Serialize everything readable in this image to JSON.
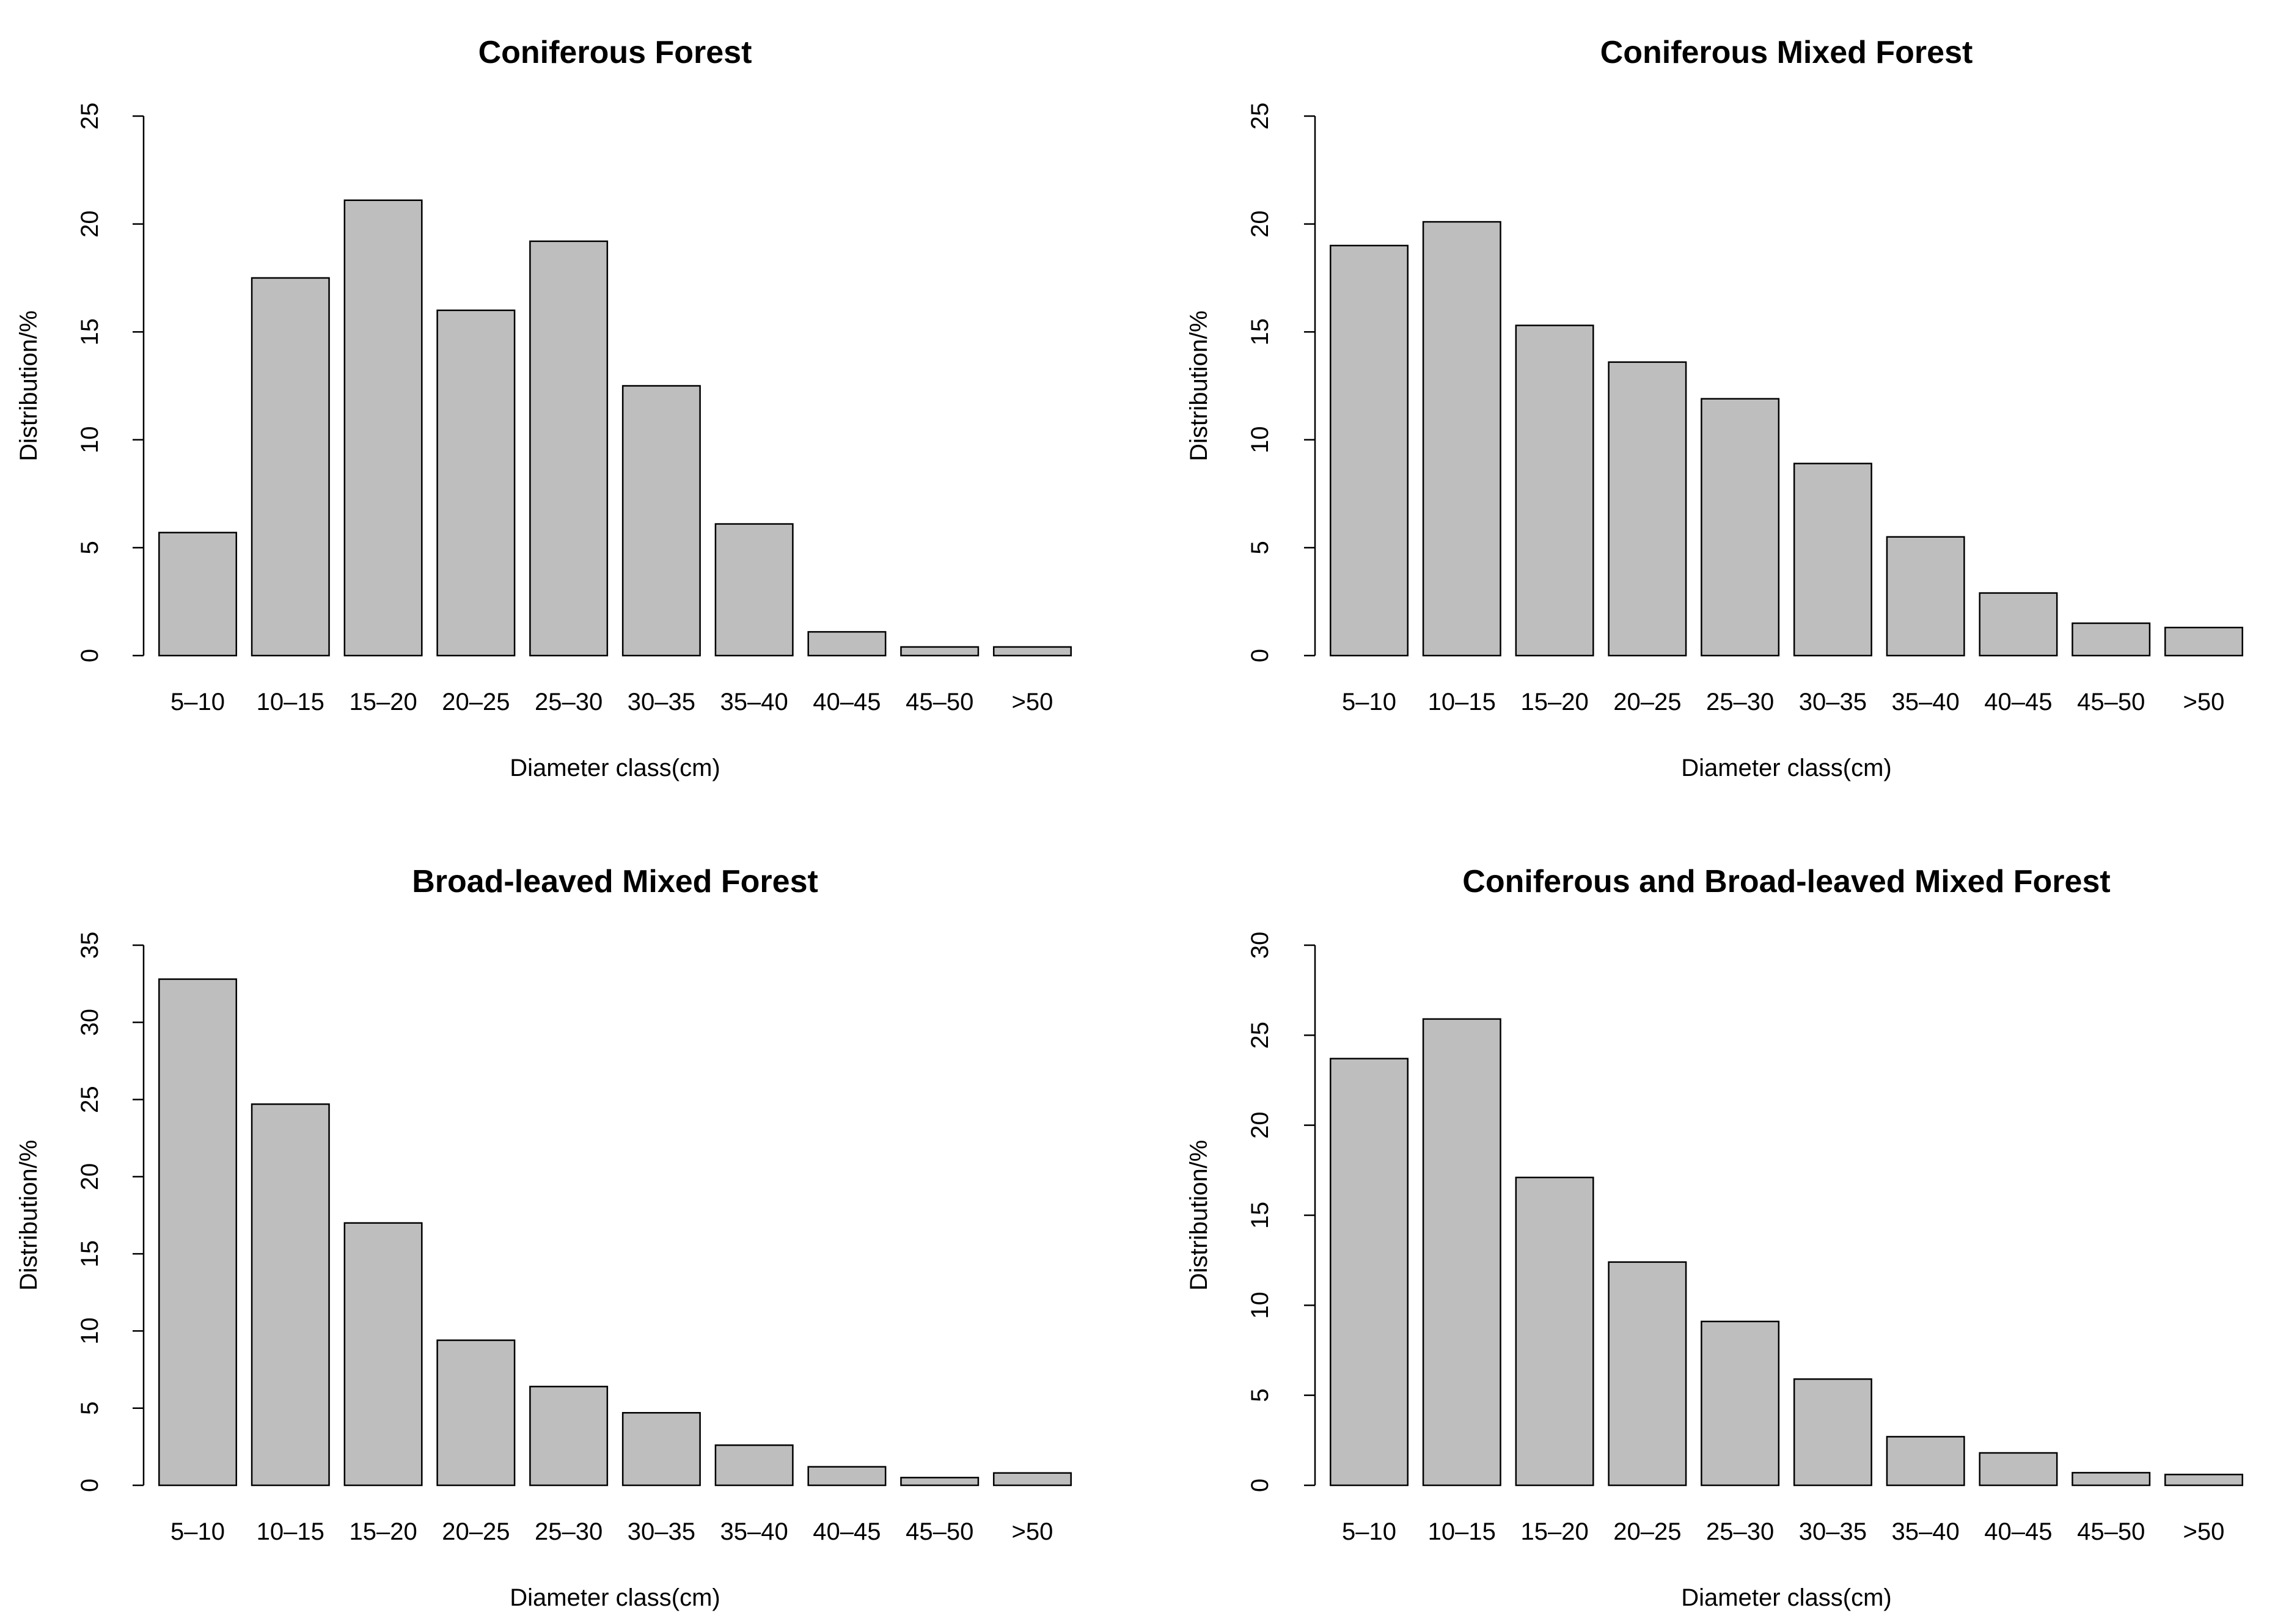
{
  "chart_data": [
    {
      "type": "bar",
      "title": "Coniferous Forest",
      "xlabel": "Diameter class(cm)",
      "ylabel": "Distribution/%",
      "categories": [
        "5–10",
        "10–15",
        "15–20",
        "20–25",
        "25–30",
        "30–35",
        "35–40",
        "40–45",
        "45–50",
        ">50"
      ],
      "values": [
        5.7,
        17.5,
        21.1,
        16.0,
        19.2,
        12.5,
        6.1,
        1.1,
        0.4,
        0.4
      ],
      "ylim": [
        0,
        25
      ],
      "yticks": [
        0,
        5,
        10,
        15,
        20,
        25
      ],
      "bar_color": "#bebebe"
    },
    {
      "type": "bar",
      "title": "Coniferous Mixed Forest",
      "xlabel": "Diameter class(cm)",
      "ylabel": "Distribution/%",
      "categories": [
        "5–10",
        "10–15",
        "15–20",
        "20–25",
        "25–30",
        "30–35",
        "35–40",
        "40–45",
        "45–50",
        ">50"
      ],
      "values": [
        19.0,
        20.1,
        15.3,
        13.6,
        11.9,
        8.9,
        5.5,
        2.9,
        1.5,
        1.3
      ],
      "ylim": [
        0,
        25
      ],
      "yticks": [
        0,
        5,
        10,
        15,
        20,
        25
      ],
      "bar_color": "#bebebe"
    },
    {
      "type": "bar",
      "title": "Broad-leaved Mixed Forest",
      "xlabel": "Diameter class(cm)",
      "ylabel": "Distribution/%",
      "categories": [
        "5–10",
        "10–15",
        "15–20",
        "20–25",
        "25–30",
        "30–35",
        "35–40",
        "40–45",
        "45–50",
        ">50"
      ],
      "values": [
        32.8,
        24.7,
        17.0,
        9.4,
        6.4,
        4.7,
        2.6,
        1.2,
        0.5,
        0.8
      ],
      "ylim": [
        0,
        35
      ],
      "yticks": [
        0,
        5,
        10,
        15,
        20,
        25,
        30,
        35
      ],
      "bar_color": "#bebebe"
    },
    {
      "type": "bar",
      "title": "Coniferous and Broad-leaved Mixed Forest",
      "xlabel": "Diameter class(cm)",
      "ylabel": "Distribution/%",
      "categories": [
        "5–10",
        "10–15",
        "15–20",
        "20–25",
        "25–30",
        "30–35",
        "35–40",
        "40–45",
        "45–50",
        ">50"
      ],
      "values": [
        23.7,
        25.9,
        17.1,
        12.4,
        9.1,
        5.9,
        2.7,
        1.8,
        0.7,
        0.6
      ],
      "ylim": [
        0,
        30
      ],
      "yticks": [
        0,
        5,
        10,
        15,
        20,
        25,
        30
      ],
      "bar_color": "#bebebe"
    }
  ]
}
